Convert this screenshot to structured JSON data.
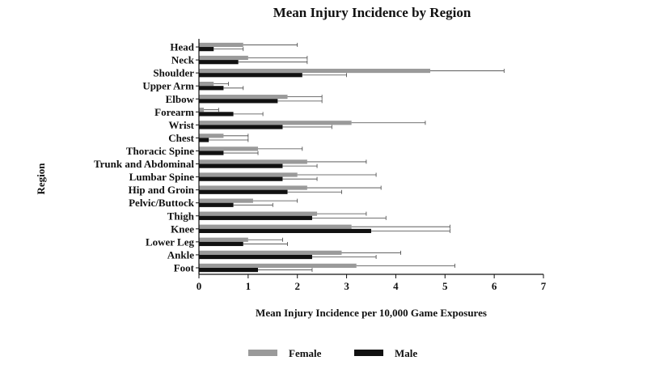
{
  "chart_data": {
    "type": "bar",
    "orientation": "horizontal",
    "title": "Mean Injury Incidence by Region",
    "xlabel": "Mean Injury Incidence per 10,000 Game Exposures",
    "ylabel": "Region",
    "xlim": [
      0,
      7
    ],
    "xticks": [
      "0",
      "1",
      "2",
      "3",
      "4",
      "5",
      "6",
      "7"
    ],
    "grid": false,
    "legend_position": "bottom",
    "error_bars": true,
    "categories": [
      "Head",
      "Neck",
      "Shoulder",
      "Upper Arm",
      "Elbow",
      "Forearm",
      "Wrist",
      "Chest",
      "Thoracic Spine",
      "Trunk and Abdominal",
      "Lumbar Spine",
      "Hip and Groin",
      "Pelvic/Buttock",
      "Thigh",
      "Knee",
      "Lower Leg",
      "Ankle",
      "Foot"
    ],
    "series": [
      {
        "name": "Female",
        "color": "#9a9a9a",
        "values": [
          0.9,
          1.0,
          4.7,
          0.3,
          1.8,
          0.1,
          3.1,
          0.5,
          1.2,
          2.2,
          2.0,
          2.2,
          1.1,
          2.4,
          3.1,
          1.0,
          2.9,
          3.2
        ],
        "error": [
          1.1,
          1.2,
          1.5,
          0.3,
          0.7,
          0.3,
          1.5,
          0.5,
          0.9,
          1.2,
          1.6,
          1.5,
          0.9,
          1.0,
          2.0,
          0.7,
          1.2,
          2.0
        ]
      },
      {
        "name": "Male",
        "color": "#111111",
        "values": [
          0.3,
          0.8,
          2.1,
          0.5,
          1.6,
          0.7,
          1.7,
          0.2,
          0.5,
          1.7,
          1.7,
          1.8,
          0.7,
          2.3,
          3.5,
          0.9,
          2.3,
          1.2
        ],
        "error": [
          0.6,
          1.4,
          0.9,
          0.4,
          0.9,
          0.6,
          1.0,
          0.8,
          0.7,
          0.7,
          0.7,
          1.1,
          0.8,
          1.5,
          1.6,
          0.9,
          1.3,
          1.1
        ]
      }
    ]
  }
}
